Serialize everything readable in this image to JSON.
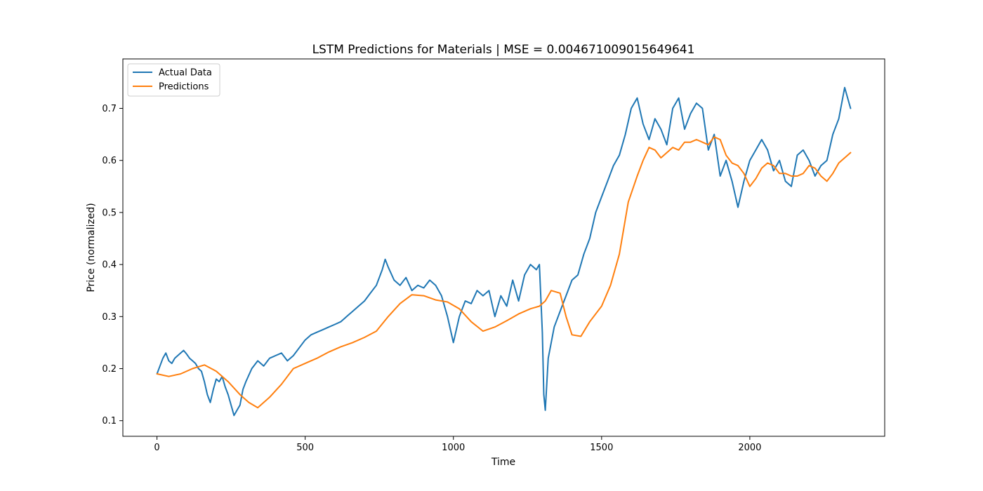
{
  "chart_data": {
    "type": "line",
    "title": "LSTM Predictions for Materials | MSE = 0.004671009015649641",
    "xlabel": "Time",
    "ylabel": "Price (normalized)",
    "xlim": [
      -115,
      2455
    ],
    "ylim": [
      0.07,
      0.795
    ],
    "xticks": [
      0,
      500,
      1000,
      1500,
      2000
    ],
    "xtick_labels": [
      "0",
      "500",
      "1000",
      "1500",
      "2000"
    ],
    "yticks": [
      0.1,
      0.2,
      0.3,
      0.4,
      0.5,
      0.6,
      0.7
    ],
    "ytick_labels": [
      "0.1",
      "0.2",
      "0.3",
      "0.4",
      "0.5",
      "0.6",
      "0.7"
    ],
    "grid": false,
    "legend_position": "top-left",
    "series": [
      {
        "name": "Actual Data",
        "color": "#1f77b4",
        "x": [
          0,
          10,
          20,
          30,
          40,
          50,
          60,
          70,
          80,
          90,
          100,
          110,
          120,
          130,
          140,
          150,
          160,
          170,
          180,
          190,
          200,
          210,
          220,
          230,
          240,
          250,
          260,
          270,
          280,
          290,
          300,
          320,
          340,
          360,
          380,
          400,
          420,
          440,
          460,
          480,
          500,
          520,
          540,
          560,
          580,
          600,
          620,
          640,
          660,
          680,
          700,
          720,
          740,
          760,
          770,
          780,
          800,
          820,
          840,
          860,
          880,
          900,
          920,
          940,
          960,
          980,
          1000,
          1020,
          1040,
          1060,
          1080,
          1100,
          1120,
          1140,
          1160,
          1180,
          1200,
          1220,
          1240,
          1260,
          1280,
          1290,
          1300,
          1305,
          1310,
          1320,
          1340,
          1360,
          1380,
          1400,
          1420,
          1440,
          1460,
          1480,
          1500,
          1520,
          1540,
          1560,
          1580,
          1600,
          1620,
          1640,
          1660,
          1680,
          1700,
          1720,
          1740,
          1760,
          1780,
          1800,
          1820,
          1840,
          1860,
          1880,
          1900,
          1920,
          1940,
          1960,
          1980,
          2000,
          2020,
          2040,
          2060,
          2080,
          2100,
          2120,
          2140,
          2160,
          2180,
          2200,
          2220,
          2240,
          2260,
          2280,
          2300,
          2320,
          2340
        ],
        "y": [
          0.19,
          0.205,
          0.22,
          0.23,
          0.215,
          0.21,
          0.22,
          0.225,
          0.23,
          0.235,
          0.228,
          0.22,
          0.215,
          0.21,
          0.2,
          0.195,
          0.175,
          0.15,
          0.135,
          0.16,
          0.18,
          0.175,
          0.185,
          0.165,
          0.15,
          0.13,
          0.11,
          0.12,
          0.13,
          0.16,
          0.175,
          0.2,
          0.215,
          0.205,
          0.22,
          0.225,
          0.23,
          0.215,
          0.225,
          0.24,
          0.255,
          0.265,
          0.27,
          0.275,
          0.28,
          0.285,
          0.29,
          0.3,
          0.31,
          0.32,
          0.33,
          0.345,
          0.36,
          0.39,
          0.41,
          0.395,
          0.37,
          0.36,
          0.375,
          0.35,
          0.36,
          0.355,
          0.37,
          0.36,
          0.34,
          0.3,
          0.25,
          0.3,
          0.33,
          0.325,
          0.35,
          0.34,
          0.35,
          0.3,
          0.34,
          0.32,
          0.37,
          0.33,
          0.38,
          0.4,
          0.39,
          0.4,
          0.27,
          0.15,
          0.12,
          0.22,
          0.28,
          0.31,
          0.34,
          0.37,
          0.38,
          0.42,
          0.45,
          0.5,
          0.53,
          0.56,
          0.59,
          0.61,
          0.65,
          0.7,
          0.72,
          0.67,
          0.64,
          0.68,
          0.66,
          0.63,
          0.7,
          0.72,
          0.66,
          0.69,
          0.71,
          0.7,
          0.62,
          0.65,
          0.57,
          0.6,
          0.56,
          0.51,
          0.56,
          0.6,
          0.62,
          0.64,
          0.62,
          0.58,
          0.6,
          0.56,
          0.55,
          0.61,
          0.62,
          0.6,
          0.57,
          0.59,
          0.6,
          0.65,
          0.68,
          0.74,
          0.7
        ]
      },
      {
        "name": "Predictions",
        "color": "#ff7f0e",
        "x": [
          0,
          40,
          80,
          120,
          160,
          200,
          240,
          280,
          310,
          340,
          380,
          420,
          460,
          500,
          540,
          580,
          620,
          660,
          700,
          740,
          780,
          820,
          860,
          900,
          940,
          980,
          1020,
          1060,
          1100,
          1140,
          1180,
          1220,
          1260,
          1290,
          1310,
          1330,
          1360,
          1380,
          1400,
          1430,
          1460,
          1500,
          1530,
          1560,
          1590,
          1620,
          1640,
          1660,
          1680,
          1700,
          1720,
          1740,
          1760,
          1780,
          1800,
          1820,
          1840,
          1860,
          1880,
          1900,
          1920,
          1940,
          1960,
          1980,
          2000,
          2020,
          2040,
          2060,
          2080,
          2100,
          2120,
          2140,
          2160,
          2180,
          2200,
          2220,
          2240,
          2260,
          2280,
          2300,
          2320,
          2340
        ],
        "y": [
          0.19,
          0.185,
          0.19,
          0.2,
          0.207,
          0.195,
          0.175,
          0.15,
          0.135,
          0.125,
          0.145,
          0.17,
          0.2,
          0.21,
          0.22,
          0.232,
          0.242,
          0.25,
          0.26,
          0.272,
          0.3,
          0.325,
          0.342,
          0.34,
          0.332,
          0.328,
          0.315,
          0.29,
          0.272,
          0.28,
          0.292,
          0.305,
          0.315,
          0.32,
          0.33,
          0.35,
          0.345,
          0.3,
          0.265,
          0.262,
          0.29,
          0.32,
          0.36,
          0.42,
          0.52,
          0.57,
          0.6,
          0.625,
          0.62,
          0.605,
          0.615,
          0.625,
          0.62,
          0.635,
          0.635,
          0.64,
          0.635,
          0.63,
          0.645,
          0.64,
          0.61,
          0.595,
          0.59,
          0.575,
          0.55,
          0.565,
          0.585,
          0.595,
          0.59,
          0.575,
          0.575,
          0.57,
          0.57,
          0.575,
          0.59,
          0.585,
          0.57,
          0.56,
          0.575,
          0.595,
          0.605,
          0.615
        ]
      }
    ]
  }
}
